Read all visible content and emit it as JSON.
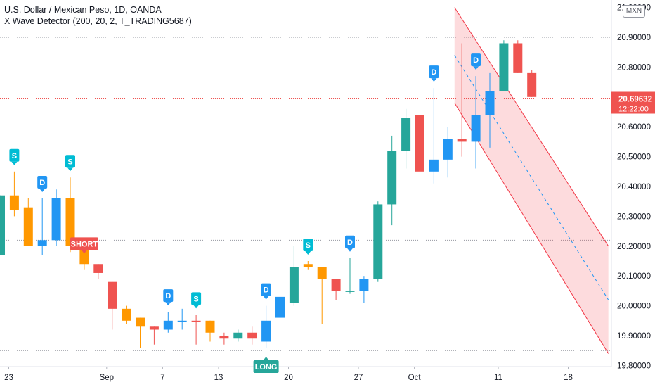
{
  "header": {
    "symbol_line": "U.S. Dollar / Mexican Peso, 1D, OANDA",
    "indicator_line": "X Wave Detector (200, 20, 2, T_TRADING5687)"
  },
  "currency_badge": "MXN",
  "price_label": {
    "price": "20.69632",
    "countdown": "12:22:00",
    "color": "#ef5350"
  },
  "colors": {
    "up_green": "#26a69a",
    "down_red": "#ef5350",
    "blue": "#2196f3",
    "orange": "#ff9800",
    "teal_s": "#00bcd4",
    "channel_line": "#f23645",
    "channel_fill": "rgba(242,54,69,0.18)"
  },
  "chart_data": {
    "type": "candlestick",
    "y_axis": {
      "min": 19.75,
      "max": 21.0,
      "tick_labels": [
        "20.90000",
        "20.80000",
        "20.70000",
        "20.60000",
        "20.50000",
        "20.40000",
        "20.30000",
        "20.20000",
        "20.10000",
        "20.00000",
        "19.90000",
        "19.80000"
      ],
      "tick_values": [
        20.9,
        20.8,
        20.7,
        20.6,
        20.5,
        20.4,
        20.3,
        20.2,
        20.1,
        20.0,
        19.9,
        19.8
      ]
    },
    "x_axis": {
      "labels": [
        {
          "text": "23",
          "bar": 0
        },
        {
          "text": "Sep",
          "bar": 7
        },
        {
          "text": "7",
          "bar": 11
        },
        {
          "text": "13",
          "bar": 15
        },
        {
          "text": "20",
          "bar": 20
        },
        {
          "text": "27",
          "bar": 25
        },
        {
          "text": "Oct",
          "bar": 29
        },
        {
          "text": "11",
          "bar": 35
        },
        {
          "text": "18",
          "bar": 40
        }
      ]
    },
    "candles": [
      {
        "o": 20.17,
        "h": 20.37,
        "l": 20.17,
        "c": 20.37,
        "color": "up"
      },
      {
        "o": 20.37,
        "h": 20.45,
        "l": 20.3,
        "c": 20.32,
        "color": "orange"
      },
      {
        "o": 20.33,
        "h": 20.36,
        "l": 20.2,
        "c": 20.2,
        "color": "orange"
      },
      {
        "o": 20.2,
        "h": 20.36,
        "l": 20.17,
        "c": 20.22,
        "color": "blue"
      },
      {
        "o": 20.22,
        "h": 20.39,
        "l": 20.2,
        "c": 20.36,
        "color": "blue"
      },
      {
        "o": 20.36,
        "h": 20.43,
        "l": 20.18,
        "c": 20.2,
        "color": "orange"
      },
      {
        "o": 20.21,
        "h": 20.22,
        "l": 20.12,
        "c": 20.14,
        "color": "orange"
      },
      {
        "o": 20.14,
        "h": 20.14,
        "l": 20.09,
        "c": 20.11,
        "color": "down"
      },
      {
        "o": 20.08,
        "h": 20.08,
        "l": 19.92,
        "c": 19.99,
        "color": "down"
      },
      {
        "o": 19.99,
        "h": 20.0,
        "l": 19.94,
        "c": 19.95,
        "color": "orange"
      },
      {
        "o": 19.96,
        "h": 19.96,
        "l": 19.86,
        "c": 19.93,
        "color": "orange"
      },
      {
        "o": 19.93,
        "h": 19.93,
        "l": 19.87,
        "c": 19.92,
        "color": "down"
      },
      {
        "o": 19.92,
        "h": 19.98,
        "l": 19.91,
        "c": 19.95,
        "color": "blue"
      },
      {
        "o": 19.95,
        "h": 19.99,
        "l": 19.92,
        "c": 19.95,
        "color": "blue"
      },
      {
        "o": 19.95,
        "h": 19.97,
        "l": 19.87,
        "c": 19.95,
        "color": "down"
      },
      {
        "o": 19.95,
        "h": 19.95,
        "l": 19.88,
        "c": 19.91,
        "color": "orange"
      },
      {
        "o": 19.9,
        "h": 19.91,
        "l": 19.87,
        "c": 19.89,
        "color": "down"
      },
      {
        "o": 19.89,
        "h": 19.92,
        "l": 19.88,
        "c": 19.91,
        "color": "up"
      },
      {
        "o": 19.91,
        "h": 19.93,
        "l": 19.87,
        "c": 19.89,
        "color": "down"
      },
      {
        "o": 19.88,
        "h": 20.0,
        "l": 19.86,
        "c": 19.95,
        "color": "blue"
      },
      {
        "o": 19.96,
        "h": 20.03,
        "l": 19.96,
        "c": 20.03,
        "color": "blue"
      },
      {
        "o": 20.01,
        "h": 20.2,
        "l": 20.0,
        "c": 20.13,
        "color": "up"
      },
      {
        "o": 20.13,
        "h": 20.15,
        "l": 20.12,
        "c": 20.14,
        "color": "orange"
      },
      {
        "o": 20.13,
        "h": 20.13,
        "l": 19.94,
        "c": 20.09,
        "color": "orange"
      },
      {
        "o": 20.09,
        "h": 20.09,
        "l": 20.02,
        "c": 20.05,
        "color": "down"
      },
      {
        "o": 20.05,
        "h": 20.16,
        "l": 20.04,
        "c": 20.05,
        "color": "up"
      },
      {
        "o": 20.05,
        "h": 20.1,
        "l": 20.01,
        "c": 20.09,
        "color": "blue"
      },
      {
        "o": 20.09,
        "h": 20.35,
        "l": 20.08,
        "c": 20.34,
        "color": "up"
      },
      {
        "o": 20.34,
        "h": 20.57,
        "l": 20.27,
        "c": 20.52,
        "color": "up"
      },
      {
        "o": 20.52,
        "h": 20.66,
        "l": 20.46,
        "c": 20.63,
        "color": "up"
      },
      {
        "o": 20.64,
        "h": 20.66,
        "l": 20.41,
        "c": 20.45,
        "color": "down"
      },
      {
        "o": 20.45,
        "h": 20.73,
        "l": 20.41,
        "c": 20.49,
        "color": "blue"
      },
      {
        "o": 20.49,
        "h": 20.6,
        "l": 20.43,
        "c": 20.56,
        "color": "blue"
      },
      {
        "o": 20.55,
        "h": 20.88,
        "l": 20.5,
        "c": 20.56,
        "color": "down"
      },
      {
        "o": 20.55,
        "h": 20.77,
        "l": 20.46,
        "c": 20.64,
        "color": "blue"
      },
      {
        "o": 20.64,
        "h": 20.78,
        "l": 20.53,
        "c": 20.72,
        "color": "blue"
      },
      {
        "o": 20.72,
        "h": 20.89,
        "l": 20.72,
        "c": 20.88,
        "color": "up"
      },
      {
        "o": 20.88,
        "h": 20.89,
        "l": 20.78,
        "c": 20.78,
        "color": "down"
      },
      {
        "o": 20.78,
        "h": 20.79,
        "l": 20.7,
        "c": 20.7,
        "color": "down"
      }
    ],
    "markers": [
      {
        "bar": 1,
        "text": "S",
        "kind": "S",
        "side": "above"
      },
      {
        "bar": 3,
        "text": "D",
        "kind": "D",
        "side": "above"
      },
      {
        "bar": 5,
        "text": "S",
        "kind": "S",
        "side": "above"
      },
      {
        "bar": 6,
        "text": "SHORT",
        "kind": "SHORT",
        "side": "above"
      },
      {
        "bar": 12,
        "text": "D",
        "kind": "D",
        "side": "above"
      },
      {
        "bar": 14,
        "text": "S",
        "kind": "S",
        "side": "above"
      },
      {
        "bar": 19,
        "text": "D",
        "kind": "D",
        "side": "above"
      },
      {
        "bar": 19,
        "text": "LONG",
        "kind": "LONG",
        "side": "below"
      },
      {
        "bar": 22,
        "text": "S",
        "kind": "S",
        "side": "above"
      },
      {
        "bar": 25,
        "text": "D",
        "kind": "D",
        "side": "above"
      },
      {
        "bar": 31,
        "text": "D",
        "kind": "D",
        "side": "above"
      },
      {
        "bar": 34,
        "text": "D",
        "kind": "D",
        "side": "above"
      }
    ],
    "horizontal_levels": [
      20.9,
      20.22,
      19.85
    ],
    "last_price_level": 20.696,
    "channel": {
      "start_bar": 32.5,
      "end_bar": 43.5,
      "upper_start": 21.0,
      "upper_end": 20.2,
      "lower_start": 20.68,
      "lower_end": 19.84
    }
  }
}
